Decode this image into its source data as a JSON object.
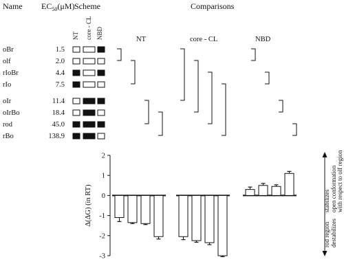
{
  "headers": {
    "name": "Name",
    "ec50_prefix": "EC",
    "ec50_sub": "50",
    "ec50_unit": "(μM)",
    "scheme": "Scheme",
    "comparisons": "Comparisons"
  },
  "scheme_columns": [
    "NT",
    "core - CL",
    "NBD"
  ],
  "comparison_groups": [
    "NT",
    "core - CL",
    "NBD"
  ],
  "rows": [
    {
      "name": "oBr",
      "ec50": "1.5",
      "scheme": [
        false,
        false,
        true
      ]
    },
    {
      "name": "olf",
      "ec50": "2.0",
      "scheme": [
        false,
        false,
        false
      ]
    },
    {
      "name": "rIoBr",
      "ec50": "4.4",
      "scheme": [
        true,
        false,
        true
      ]
    },
    {
      "name": "rIo",
      "ec50": "7.5",
      "scheme": [
        true,
        false,
        false
      ]
    },
    {
      "name": "oIr",
      "ec50": "11.4",
      "scheme": [
        false,
        true,
        true
      ]
    },
    {
      "name": "oIrBo",
      "ec50": "18.4",
      "scheme": [
        false,
        true,
        false
      ]
    },
    {
      "name": "rod",
      "ec50": "45.0",
      "scheme": [
        true,
        true,
        true
      ]
    },
    {
      "name": "rBo",
      "ec50": "138.9",
      "scheme": [
        true,
        true,
        false
      ]
    }
  ],
  "brackets": [
    {
      "group": 0,
      "col": 0,
      "from": 0,
      "to": 1
    },
    {
      "group": 0,
      "col": 1,
      "from": 1,
      "to": 3
    },
    {
      "group": 0,
      "col": 2,
      "from": 4,
      "to": 6
    },
    {
      "group": 0,
      "col": 3,
      "from": 5,
      "to": 7
    },
    {
      "group": 1,
      "col": 0,
      "from": 0,
      "to": 4
    },
    {
      "group": 1,
      "col": 1,
      "from": 1,
      "to": 5
    },
    {
      "group": 1,
      "col": 2,
      "from": 2,
      "to": 6
    },
    {
      "group": 1,
      "col": 3,
      "from": 3,
      "to": 7
    },
    {
      "group": 2,
      "col": 0,
      "from": 0,
      "to": 1
    },
    {
      "group": 2,
      "col": 1,
      "from": 2,
      "to": 3
    },
    {
      "group": 2,
      "col": 2,
      "from": 4,
      "to": 5
    },
    {
      "group": 2,
      "col": 3,
      "from": 6,
      "to": 7
    }
  ],
  "chart_data": {
    "type": "bar",
    "ylabel": "Δ(ΔG) (in RT)",
    "ylim": [
      -3,
      2
    ],
    "yticks": [
      -3,
      -2,
      -1,
      0,
      1,
      2
    ],
    "grid": false,
    "legend": "none",
    "groups": [
      {
        "name": "NT",
        "values": [
          -1.1,
          -1.35,
          -1.4,
          -2.05
        ],
        "errors": [
          0.2,
          0.05,
          0.05,
          0.12
        ]
      },
      {
        "name": "core - CL",
        "values": [
          -2.05,
          -2.25,
          -2.35,
          -3.0
        ],
        "errors": [
          0.15,
          0.08,
          0.1,
          0.05
        ]
      },
      {
        "name": "NBD",
        "values": [
          0.3,
          0.5,
          0.45,
          1.1
        ],
        "errors": [
          0.12,
          0.1,
          0.08,
          0.1
        ]
      }
    ]
  },
  "annotation": {
    "top_lines": [
      "stabilizes",
      "open conformation",
      "with respect to olf region"
    ],
    "rod_lines": [
      "rod region",
      "destabilizes"
    ]
  }
}
